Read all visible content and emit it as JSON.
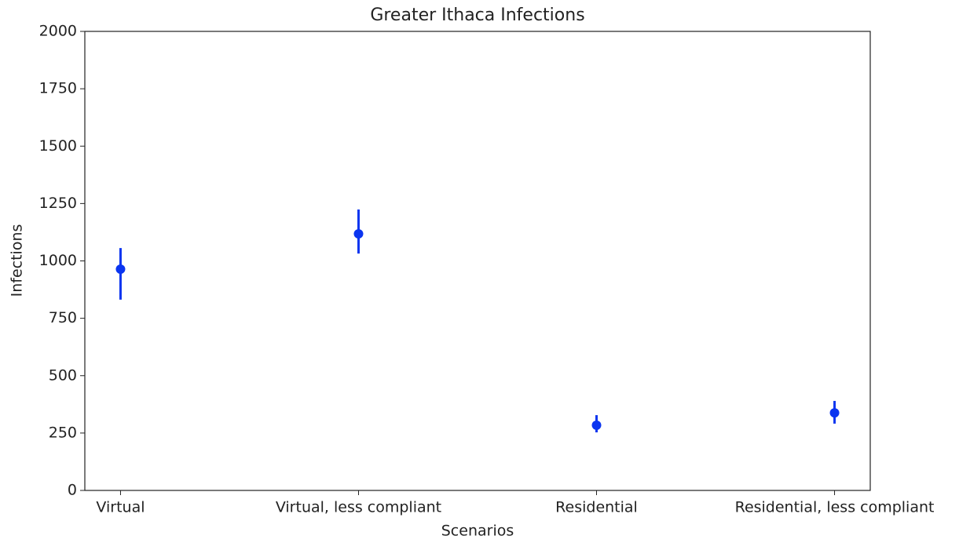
{
  "chart_data": {
    "type": "errorbar",
    "title": "Greater Ithaca Infections",
    "xlabel": "Scenarios",
    "ylabel": "Infections",
    "categories": [
      "Virtual",
      "Virtual, less compliant",
      "Residential",
      "Residential, less compliant"
    ],
    "values": [
      964,
      1118,
      284,
      338
    ],
    "error_minus": [
      133,
      86,
      31,
      47
    ],
    "error_plus": [
      92,
      106,
      44,
      52
    ],
    "color": "#0b35f0",
    "ylim": [
      0,
      2000
    ],
    "yticks": [
      0,
      250,
      500,
      750,
      1000,
      1250,
      1500,
      1750,
      2000
    ],
    "grid": false
  }
}
